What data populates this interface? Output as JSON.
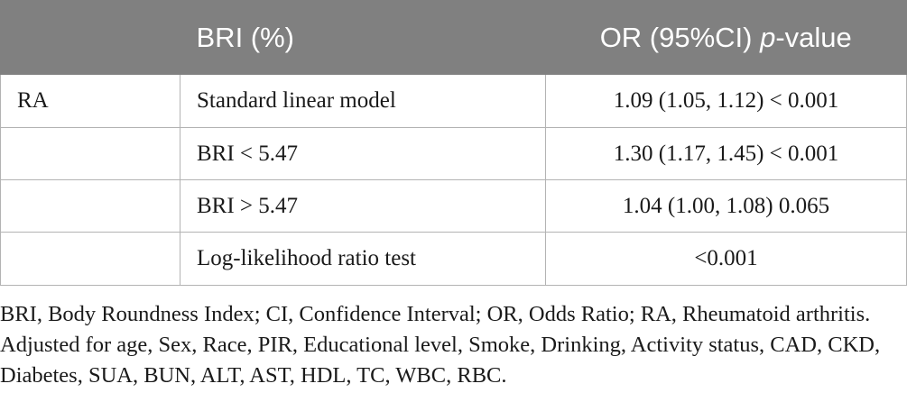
{
  "table": {
    "headers": {
      "col1": "",
      "col2": "BRI (%)",
      "col3_prefix": "OR (95%CI) ",
      "col3_italic": "p",
      "col3_suffix": "-value"
    },
    "rows": [
      {
        "group": "RA",
        "model": "Standard linear model",
        "or_value": "1.09 (1.05, 1.12) < 0.001"
      },
      {
        "group": "",
        "model": "BRI < 5.47",
        "or_value": "1.30 (1.17, 1.45) < 0.001"
      },
      {
        "group": "",
        "model": "BRI > 5.47",
        "or_value": "1.04 (1.00, 1.08) 0.065"
      },
      {
        "group": "",
        "model": "Log-likelihood ratio test",
        "or_value": "<0.001"
      }
    ]
  },
  "footnote": "BRI, Body Roundness Index; CI, Confidence Interval; OR, Odds Ratio; RA, Rheumatoid arthritis. Adjusted for age, Sex, Race, PIR, Educational level, Smoke, Drinking, Activity status, CAD, CKD, Diabetes, SUA, BUN, ALT, AST, HDL, TC, WBC, RBC."
}
